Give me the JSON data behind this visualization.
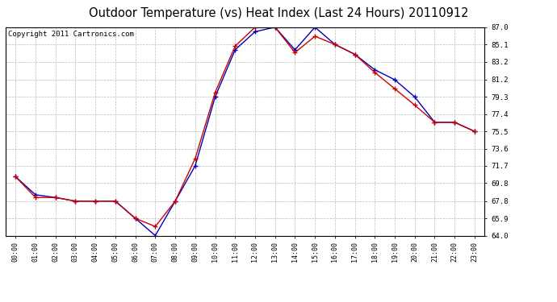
{
  "title": "Outdoor Temperature (vs) Heat Index (Last 24 Hours) 20110912",
  "copyright": "Copyright 2011 Cartronics.com",
  "x_labels": [
    "00:00",
    "01:00",
    "02:00",
    "03:00",
    "04:00",
    "05:00",
    "06:00",
    "07:00",
    "08:00",
    "09:00",
    "10:00",
    "11:00",
    "12:00",
    "13:00",
    "14:00",
    "15:00",
    "16:00",
    "17:00",
    "18:00",
    "19:00",
    "20:00",
    "21:00",
    "22:00",
    "23:00"
  ],
  "temp_blue": [
    70.5,
    68.5,
    68.2,
    67.8,
    67.8,
    67.8,
    65.9,
    64.0,
    67.8,
    71.7,
    79.3,
    84.5,
    86.5,
    87.0,
    84.5,
    87.0,
    85.1,
    84.0,
    82.3,
    81.2,
    79.3,
    76.5,
    76.5,
    75.5
  ],
  "heat_red": [
    70.5,
    68.2,
    68.2,
    67.8,
    67.8,
    67.8,
    65.9,
    65.0,
    67.8,
    72.5,
    79.8,
    84.9,
    87.0,
    87.0,
    84.2,
    86.0,
    85.1,
    84.0,
    82.0,
    80.2,
    78.4,
    76.5,
    76.5,
    75.5
  ],
  "ylim_min": 64.0,
  "ylim_max": 87.0,
  "yticks": [
    64.0,
    65.9,
    67.8,
    69.8,
    71.7,
    73.6,
    75.5,
    77.4,
    79.3,
    81.2,
    83.2,
    85.1,
    87.0
  ],
  "blue_color": "#0000bb",
  "red_color": "#cc0000",
  "bg_color": "#ffffff",
  "grid_color": "#aaaaaa",
  "title_fontsize": 10.5,
  "copyright_fontsize": 6.5
}
